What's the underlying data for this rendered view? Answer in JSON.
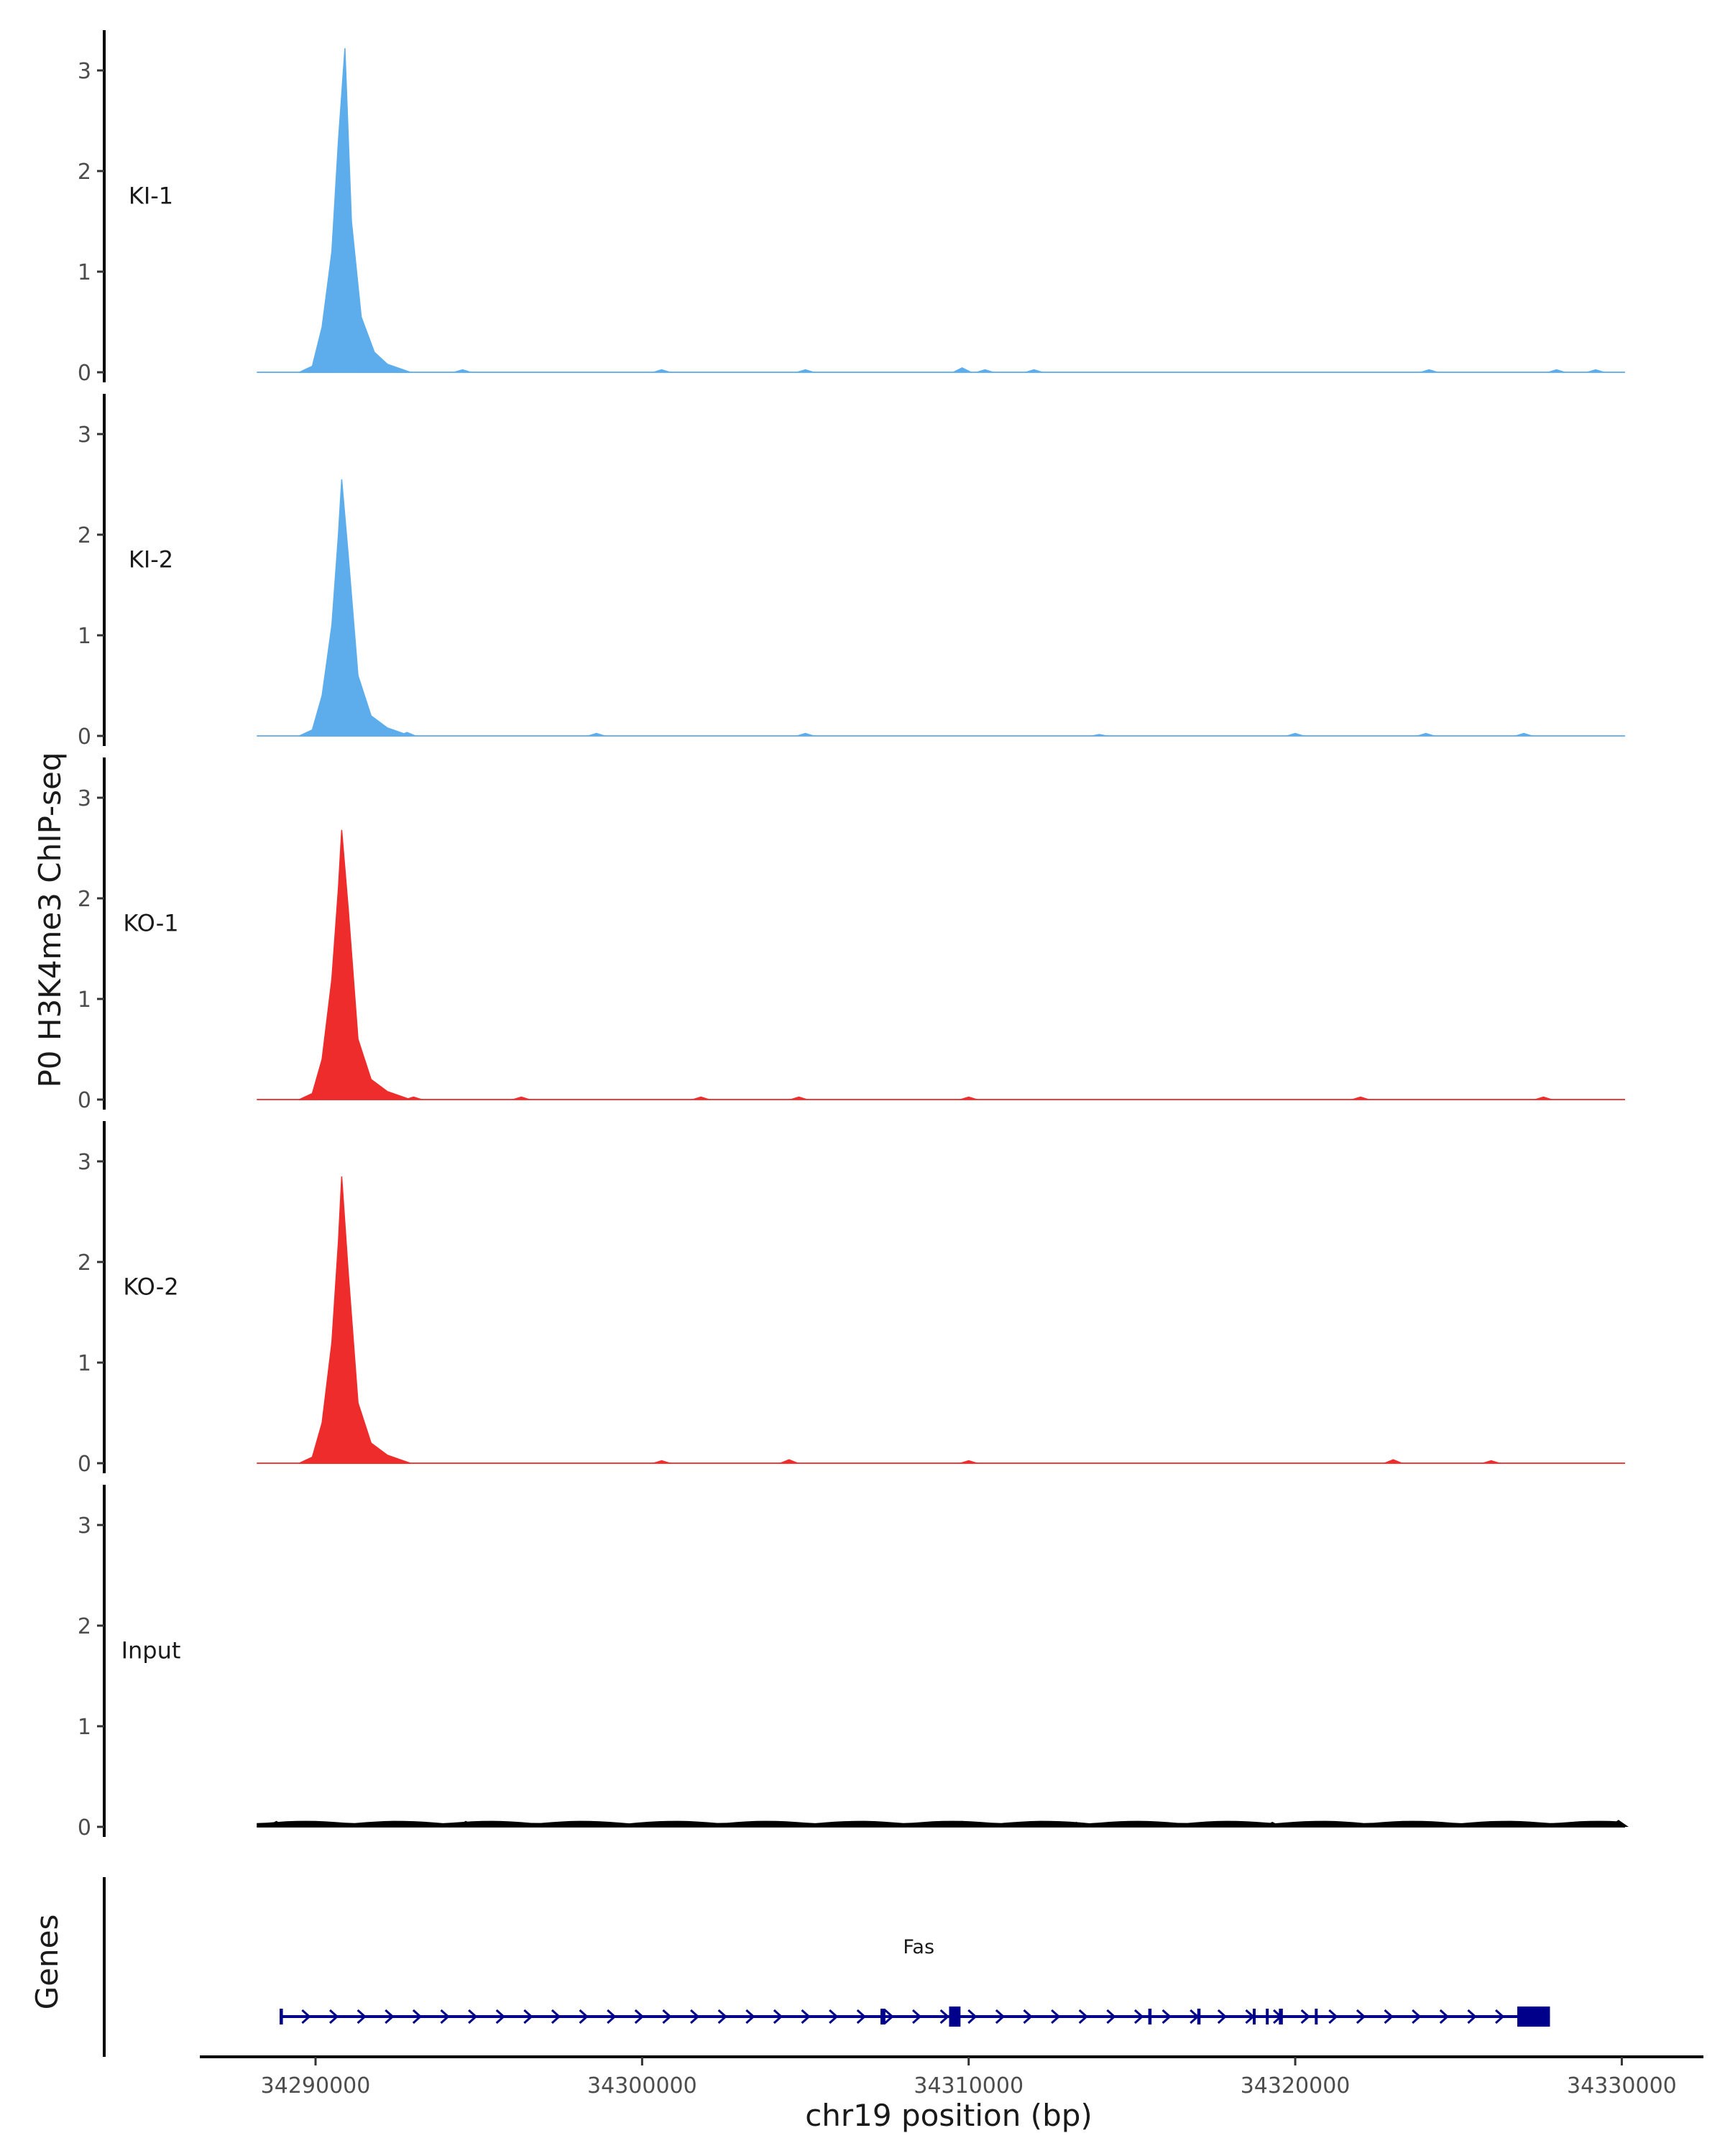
{
  "chart_data": {
    "type": "area",
    "title": "",
    "ylabel": "P0 H3K4me3 ChIP-seq",
    "genes_label": "Genes",
    "xlabel": "chr19 position (bp)",
    "xlim": [
      34286500,
      34332500
    ],
    "signal_range": [
      34288200,
      34330100
    ],
    "x_ticks": [
      {
        "value": 34290000,
        "label": "34290000"
      },
      {
        "value": 34300000,
        "label": "34300000"
      },
      {
        "value": 34310000,
        "label": "34310000"
      },
      {
        "value": 34320000,
        "label": "34320000"
      },
      {
        "value": 34330000,
        "label": "34330000"
      }
    ],
    "ylim": [
      -0.1,
      3.4
    ],
    "y_ticks": [
      {
        "value": 0,
        "label": "0"
      },
      {
        "value": 1,
        "label": "1"
      },
      {
        "value": 2,
        "label": "2"
      },
      {
        "value": 3,
        "label": "3"
      }
    ],
    "tracks": [
      {
        "name": "KI-1",
        "color": "#5DADEC",
        "peak_x": 34290900,
        "peak_y": 3.22,
        "peak_profile": [
          [
            34289500,
            0
          ],
          [
            34289900,
            0.06
          ],
          [
            34290200,
            0.45
          ],
          [
            34290500,
            1.2
          ],
          [
            34290700,
            2.3
          ],
          [
            34290900,
            3.22
          ],
          [
            34291100,
            1.5
          ],
          [
            34291400,
            0.55
          ],
          [
            34291800,
            0.2
          ],
          [
            34292200,
            0.08
          ],
          [
            34292900,
            0
          ]
        ],
        "noise": [
          [
            34290900,
            0.04
          ],
          [
            34294500,
            0.03
          ],
          [
            34300600,
            0.03
          ],
          [
            34305000,
            0.03
          ],
          [
            34309800,
            0.05
          ],
          [
            34310500,
            0.03
          ],
          [
            34312000,
            0.03
          ],
          [
            34324100,
            0.03
          ],
          [
            34328000,
            0.03
          ],
          [
            34329200,
            0.03
          ]
        ]
      },
      {
        "name": "KI-2",
        "color": "#5DADEC",
        "peak_x": 34290800,
        "peak_y": 2.55,
        "peak_profile": [
          [
            34289500,
            0
          ],
          [
            34289900,
            0.06
          ],
          [
            34290200,
            0.4
          ],
          [
            34290500,
            1.1
          ],
          [
            34290700,
            2.0
          ],
          [
            34290800,
            2.55
          ],
          [
            34291000,
            1.8
          ],
          [
            34291300,
            0.6
          ],
          [
            34291700,
            0.2
          ],
          [
            34292200,
            0.08
          ],
          [
            34292900,
            0
          ]
        ],
        "noise": [
          [
            34292800,
            0.04
          ],
          [
            34298600,
            0.03
          ],
          [
            34305000,
            0.03
          ],
          [
            34314000,
            0.02
          ],
          [
            34320000,
            0.03
          ],
          [
            34324000,
            0.03
          ],
          [
            34327000,
            0.03
          ]
        ]
      },
      {
        "name": "KO-1",
        "color": "#EE2C2C",
        "peak_x": 34290800,
        "peak_y": 2.68,
        "peak_profile": [
          [
            34289500,
            0
          ],
          [
            34289900,
            0.06
          ],
          [
            34290200,
            0.4
          ],
          [
            34290500,
            1.2
          ],
          [
            34290700,
            2.1
          ],
          [
            34290800,
            2.68
          ],
          [
            34291000,
            1.9
          ],
          [
            34291300,
            0.6
          ],
          [
            34291700,
            0.2
          ],
          [
            34292200,
            0.08
          ],
          [
            34292900,
            0
          ]
        ],
        "noise": [
          [
            34293000,
            0.03
          ],
          [
            34296300,
            0.03
          ],
          [
            34301800,
            0.03
          ],
          [
            34304800,
            0.03
          ],
          [
            34310000,
            0.03
          ],
          [
            34322000,
            0.03
          ],
          [
            34327600,
            0.03
          ]
        ]
      },
      {
        "name": "KO-2",
        "color": "#EE2C2C",
        "peak_x": 34290800,
        "peak_y": 2.85,
        "peak_profile": [
          [
            34289500,
            0
          ],
          [
            34289900,
            0.06
          ],
          [
            34290200,
            0.4
          ],
          [
            34290500,
            1.2
          ],
          [
            34290700,
            2.2
          ],
          [
            34290800,
            2.85
          ],
          [
            34291000,
            1.9
          ],
          [
            34291300,
            0.6
          ],
          [
            34291700,
            0.2
          ],
          [
            34292200,
            0.08
          ],
          [
            34292900,
            0
          ]
        ],
        "noise": [
          [
            34300600,
            0.03
          ],
          [
            34304500,
            0.04
          ],
          [
            34310000,
            0.03
          ],
          [
            34323000,
            0.04
          ],
          [
            34326000,
            0.03
          ]
        ]
      },
      {
        "name": "Input",
        "color": "#000000",
        "peak_x": null,
        "peak_y": 0.08,
        "peak_profile": [],
        "noise": [
          [
            34288800,
            0.06
          ],
          [
            34292400,
            0.05
          ],
          [
            34294600,
            0.06
          ],
          [
            34298800,
            0.05
          ],
          [
            34300900,
            0.05
          ],
          [
            34303600,
            0.05
          ],
          [
            34306600,
            0.05
          ],
          [
            34309800,
            0.06
          ],
          [
            34313300,
            0.05
          ],
          [
            34315800,
            0.05
          ],
          [
            34319300,
            0.05
          ],
          [
            34324200,
            0.05
          ],
          [
            34326700,
            0.05
          ],
          [
            34329900,
            0.07
          ]
        ]
      }
    ],
    "gene_track": {
      "name": "Fas",
      "color": "#00008B",
      "strand": "+",
      "start": 34288900,
      "end": 34327800,
      "exons": [
        [
          34288900,
          34289000
        ],
        [
          34307300,
          34307450
        ],
        [
          34309400,
          34309750
        ],
        [
          34315500,
          34315600
        ],
        [
          34317000,
          34317100
        ],
        [
          34318700,
          34318760
        ],
        [
          34319100,
          34319160
        ],
        [
          34319500,
          34319620
        ],
        [
          34320600,
          34320660
        ],
        [
          34326800,
          34327800
        ]
      ]
    }
  }
}
